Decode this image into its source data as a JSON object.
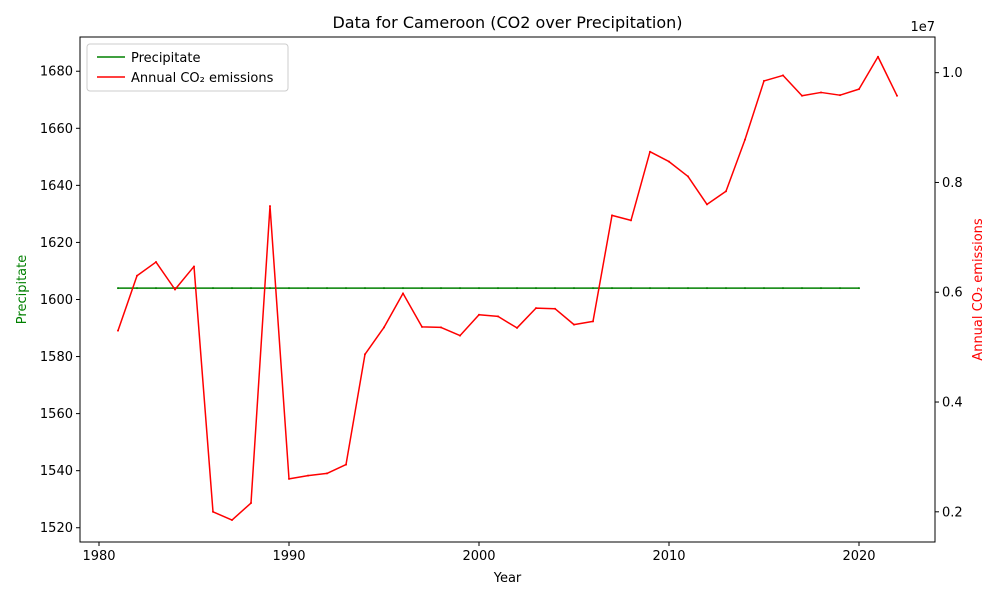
{
  "chart_data": {
    "type": "line",
    "title": "Data for Cameroon (CO2 over Precipitation)",
    "xlabel": "Year",
    "ylabel_left": "Precipitate",
    "ylabel_right": "Annual CO₂ emissions",
    "right_offset_label": "1e7",
    "xlim": [
      1979,
      2024
    ],
    "ylim_left": [
      1515,
      1692
    ],
    "ylim_right": [
      1450000,
      10650000
    ],
    "x_ticks": [
      1980,
      1990,
      2000,
      2010,
      2020
    ],
    "y_left_ticks": [
      1520,
      1540,
      1560,
      1580,
      1600,
      1620,
      1640,
      1660,
      1680
    ],
    "y_right_ticks": [
      2000000,
      4000000,
      6000000,
      8000000,
      10000000
    ],
    "y_right_tick_labels": [
      "0.2",
      "0.4",
      "0.6",
      "0.8",
      "1.0"
    ],
    "legend_position": "upper-left",
    "grid": false,
    "series": [
      {
        "name": "Precipitate",
        "axis": "left",
        "color": "#008000",
        "x": [
          1981,
          1982,
          1983,
          1984,
          1985,
          1986,
          1987,
          1988,
          1989,
          1990,
          1991,
          1992,
          1993,
          1994,
          1995,
          1996,
          1997,
          1998,
          1999,
          2000,
          2001,
          2002,
          2003,
          2004,
          2005,
          2006,
          2007,
          2008,
          2009,
          2010,
          2011,
          2012,
          2013,
          2014,
          2015,
          2016,
          2017,
          2018,
          2019,
          2020
        ],
        "values": [
          1604,
          1604,
          1604,
          1604,
          1604,
          1604,
          1604,
          1604,
          1604,
          1604,
          1604,
          1604,
          1604,
          1604,
          1604,
          1604,
          1604,
          1604,
          1604,
          1604,
          1604,
          1604,
          1604,
          1604,
          1604,
          1604,
          1604,
          1604,
          1604,
          1604,
          1604,
          1604,
          1604,
          1604,
          1604,
          1604,
          1604,
          1604,
          1604,
          1604
        ]
      },
      {
        "name": "Annual CO₂ emissions",
        "axis": "right",
        "color": "#ff0000",
        "x": [
          1981,
          1982,
          1983,
          1984,
          1985,
          1986,
          1987,
          1988,
          1989,
          1990,
          1991,
          1992,
          1993,
          1994,
          1995,
          1996,
          1997,
          1998,
          1999,
          2000,
          2001,
          2002,
          2003,
          2004,
          2005,
          2006,
          2007,
          2008,
          2009,
          2010,
          2011,
          2012,
          2013,
          2014,
          2015,
          2016,
          2017,
          2018,
          2019,
          2020,
          2021,
          2022
        ],
        "values": [
          5300000,
          6300000,
          6550000,
          6050000,
          6470000,
          2000000,
          1850000,
          2160000,
          7570000,
          2600000,
          2660000,
          2700000,
          2860000,
          4870000,
          5360000,
          5980000,
          5370000,
          5360000,
          5210000,
          5590000,
          5560000,
          5350000,
          5710000,
          5700000,
          5410000,
          5470000,
          7400000,
          7310000,
          8560000,
          8380000,
          8110000,
          7600000,
          7840000,
          8780000,
          9850000,
          9950000,
          9580000,
          9640000,
          9590000,
          9700000,
          10290000,
          9580000
        ]
      }
    ]
  }
}
